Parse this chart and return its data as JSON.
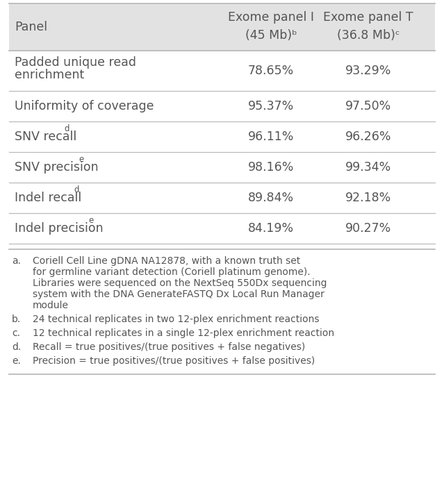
{
  "header_col1": "Panel",
  "header_col2_line1": "Exome panel I",
  "header_col2_line2": "(45 Mb)ᵇ",
  "header_col3_line1": "Exome panel T",
  "header_col3_line2": "(36.8 Mb)ᶜ",
  "rows": [
    {
      "label_lines": [
        "Padded unique read",
        "enrichment"
      ],
      "val1": "78.65%",
      "val2": "93.29%",
      "superscript": ""
    },
    {
      "label_lines": [
        "Uniformity of coverage"
      ],
      "val1": "95.37%",
      "val2": "97.50%",
      "superscript": ""
    },
    {
      "label_lines": [
        "SNV recall"
      ],
      "val1": "96.11%",
      "val2": "96.26%",
      "superscript": "d"
    },
    {
      "label_lines": [
        "SNV precision"
      ],
      "val1": "98.16%",
      "val2": "99.34%",
      "superscript": "e"
    },
    {
      "label_lines": [
        "Indel recall"
      ],
      "val1": "89.84%",
      "val2": "92.18%",
      "superscript": "d"
    },
    {
      "label_lines": [
        "Indel precision"
      ],
      "val1": "84.19%",
      "val2": "90.27%",
      "superscript": "e"
    }
  ],
  "footnotes": [
    {
      "letter": "a",
      "text_lines": [
        "Coriell Cell Line gDNA NA12878, with a known truth set",
        "for germline variant detection (Coriell platinum genome).",
        "Libraries were sequenced on the NextSeq 550Dx sequencing",
        "system with the DNA GenerateFASTQ Dx Local Run Manager",
        "module"
      ]
    },
    {
      "letter": "b",
      "text_lines": [
        "24 technical replicates in two 12-plex enrichment reactions"
      ]
    },
    {
      "letter": "c",
      "text_lines": [
        "12 technical replicates in a single 12-plex enrichment reaction"
      ]
    },
    {
      "letter": "d",
      "text_lines": [
        "Recall = true positives/(true positives + false negatives)"
      ]
    },
    {
      "letter": "e",
      "text_lines": [
        "Precision = true positives/(true positives + false positives)"
      ]
    }
  ],
  "header_bg": "#e2e2e2",
  "text_color": "#555555",
  "line_color": "#bbbbbb",
  "fig_width": 6.39,
  "fig_height": 7.13,
  "dpi": 100
}
